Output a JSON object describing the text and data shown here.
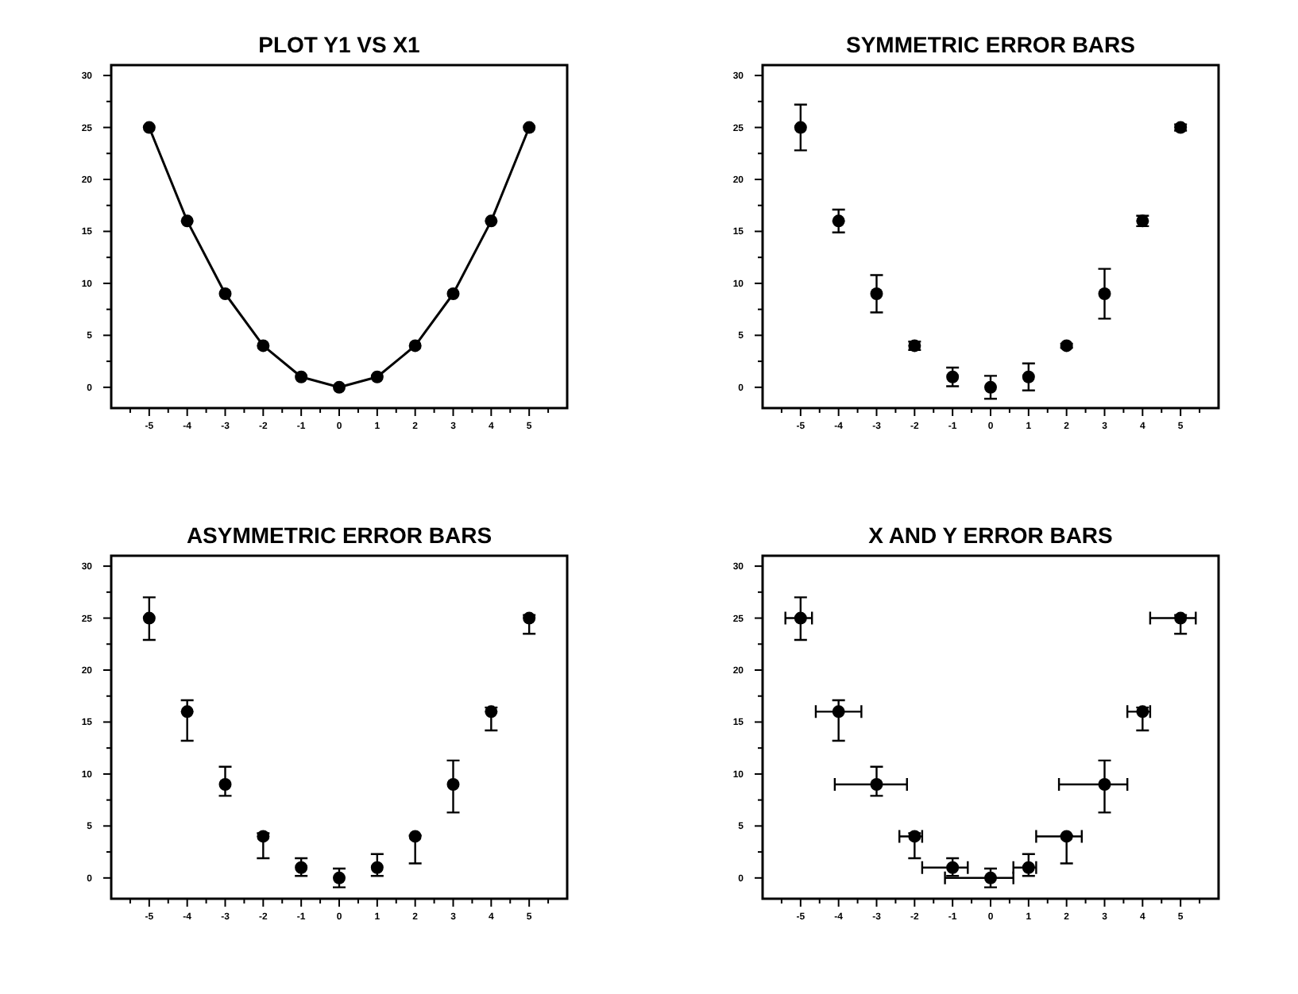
{
  "chart_data": [
    {
      "type": "line",
      "title": "PLOT Y1 VS X1",
      "x": [
        -5,
        -4,
        -3,
        -2,
        -1,
        0,
        1,
        2,
        3,
        4,
        5
      ],
      "series": [
        {
          "color": "#000000",
          "values": [
            25,
            16,
            9,
            4,
            1,
            0,
            1,
            4,
            9,
            16,
            25
          ]
        }
      ],
      "marker": "circle",
      "line_style": "solid",
      "xlim": [
        -6,
        6
      ],
      "ylim": [
        -2,
        31
      ],
      "xticks": [
        -5,
        -4,
        -3,
        -2,
        -1,
        0,
        1,
        2,
        3,
        4,
        5,
        {
          "value": -5.5,
          "label": null
        },
        {
          "value": -4.5,
          "label": null
        },
        {
          "value": -3.5,
          "label": null
        },
        {
          "value": -2.5,
          "label": null
        },
        {
          "value": -1.5,
          "label": null
        },
        {
          "value": -0.5,
          "label": null
        },
        {
          "value": 0.5,
          "label": null
        },
        {
          "value": 1.5,
          "label": null
        },
        {
          "value": 2.5,
          "label": null
        },
        {
          "value": 3.5,
          "label": null
        },
        {
          "value": 4.5,
          "label": null
        },
        {
          "value": 5.5,
          "label": null
        }
      ],
      "yticks": [
        0,
        5,
        10,
        15,
        20,
        25,
        30,
        {
          "value": 2.5,
          "label": null
        },
        {
          "value": 7.5,
          "label": null
        },
        {
          "value": 12.5,
          "label": null
        },
        {
          "value": 17.5,
          "label": null
        },
        {
          "value": 22.5,
          "label": null
        },
        {
          "value": 27.5,
          "label": null
        }
      ],
      "grid": false
    },
    {
      "type": "scatter",
      "title": "SYMMETRIC ERROR BARS",
      "x": [
        -5,
        -4,
        -3,
        -2,
        -1,
        0,
        1,
        2,
        3,
        4,
        5
      ],
      "series": [
        {
          "color": "#000000",
          "values": [
            25,
            16,
            9,
            4,
            1,
            0,
            1,
            4,
            9,
            16,
            25
          ],
          "errors": [
            2.2,
            1.1,
            1.8,
            0.4,
            0.9,
            1.1,
            1.3,
            0.2,
            2.4,
            0.5,
            0.3
          ]
        }
      ],
      "marker": "circle",
      "xlim": [
        -6,
        6
      ],
      "ylim": [
        -2,
        31
      ],
      "xticks": [
        -5,
        -4,
        -3,
        -2,
        -1,
        0,
        1,
        2,
        3,
        4,
        5,
        {
          "value": -5.5,
          "label": null
        },
        {
          "value": -4.5,
          "label": null
        },
        {
          "value": -3.5,
          "label": null
        },
        {
          "value": -2.5,
          "label": null
        },
        {
          "value": -1.5,
          "label": null
        },
        {
          "value": -0.5,
          "label": null
        },
        {
          "value": 0.5,
          "label": null
        },
        {
          "value": 1.5,
          "label": null
        },
        {
          "value": 2.5,
          "label": null
        },
        {
          "value": 3.5,
          "label": null
        },
        {
          "value": 4.5,
          "label": null
        },
        {
          "value": 5.5,
          "label": null
        }
      ],
      "yticks": [
        0,
        5,
        10,
        15,
        20,
        25,
        30,
        {
          "value": 2.5,
          "label": null
        },
        {
          "value": 7.5,
          "label": null
        },
        {
          "value": 12.5,
          "label": null
        },
        {
          "value": 17.5,
          "label": null
        },
        {
          "value": 22.5,
          "label": null
        },
        {
          "value": 27.5,
          "label": null
        }
      ],
      "grid": false
    },
    {
      "type": "scatter",
      "title": "ASYMMETRIC ERROR BARS",
      "x": [
        -5,
        -4,
        -3,
        -2,
        -1,
        0,
        1,
        2,
        3,
        4,
        5
      ],
      "series": [
        {
          "color": "#000000",
          "values": [
            25,
            16,
            9,
            4,
            1,
            0,
            1,
            4,
            9,
            16,
            25
          ],
          "errors": [
            [
              22.9,
              27.0
            ],
            [
              13.2,
              17.1
            ],
            [
              7.9,
              10.7
            ],
            [
              1.9,
              4.3
            ],
            [
              0.2,
              1.9
            ],
            [
              -0.9,
              0.9
            ],
            [
              0.2,
              2.3
            ],
            [
              1.4,
              4.1
            ],
            [
              6.3,
              11.3
            ],
            [
              14.2,
              16.4
            ],
            [
              23.5,
              25.3
            ]
          ]
        }
      ],
      "marker": "circle",
      "xlim": [
        -6,
        6
      ],
      "ylim": [
        -2,
        31
      ],
      "xticks": [
        -5,
        -4,
        -3,
        -2,
        -1,
        0,
        1,
        2,
        3,
        4,
        5,
        {
          "value": -5.5,
          "label": null
        },
        {
          "value": -4.5,
          "label": null
        },
        {
          "value": -3.5,
          "label": null
        },
        {
          "value": -2.5,
          "label": null
        },
        {
          "value": -1.5,
          "label": null
        },
        {
          "value": -0.5,
          "label": null
        },
        {
          "value": 0.5,
          "label": null
        },
        {
          "value": 1.5,
          "label": null
        },
        {
          "value": 2.5,
          "label": null
        },
        {
          "value": 3.5,
          "label": null
        },
        {
          "value": 4.5,
          "label": null
        },
        {
          "value": 5.5,
          "label": null
        }
      ],
      "yticks": [
        0,
        5,
        10,
        15,
        20,
        25,
        30,
        {
          "value": 2.5,
          "label": null
        },
        {
          "value": 7.5,
          "label": null
        },
        {
          "value": 12.5,
          "label": null
        },
        {
          "value": 17.5,
          "label": null
        },
        {
          "value": 22.5,
          "label": null
        },
        {
          "value": 27.5,
          "label": null
        }
      ],
      "grid": false
    },
    {
      "type": "scatter",
      "title": "X AND Y ERROR BARS",
      "x": [
        -5,
        -4,
        -3,
        -2,
        -1,
        0,
        1,
        2,
        3,
        4,
        5
      ],
      "series": [
        {
          "color": "#000000",
          "values": [
            25,
            16,
            9,
            4,
            1,
            0,
            1,
            4,
            9,
            16,
            25
          ],
          "errors": [
            [
              22.9,
              27.0
            ],
            [
              13.2,
              17.1
            ],
            [
              7.9,
              10.7
            ],
            [
              1.9,
              4.3
            ],
            [
              0.2,
              1.9
            ],
            [
              -0.9,
              0.9
            ],
            [
              0.2,
              2.3
            ],
            [
              1.4,
              4.1
            ],
            [
              6.3,
              11.3
            ],
            [
              14.2,
              16.4
            ],
            [
              23.5,
              25.3
            ]
          ],
          "xerrors": [
            [
              -5.4,
              -4.7
            ],
            [
              -4.6,
              -3.4
            ],
            [
              -4.1,
              -2.2
            ],
            [
              -2.4,
              -1.8
            ],
            [
              -1.8,
              -0.6
            ],
            [
              -1.2,
              0.6
            ],
            [
              0.6,
              1.2
            ],
            [
              1.2,
              2.4
            ],
            [
              1.8,
              3.6
            ],
            [
              3.6,
              4.2
            ],
            [
              4.2,
              5.4
            ]
          ]
        }
      ],
      "marker": "circle",
      "xlim": [
        -6,
        6
      ],
      "ylim": [
        -2,
        31
      ],
      "xticks": [
        -5,
        -4,
        -3,
        -2,
        -1,
        0,
        1,
        2,
        3,
        4,
        5,
        {
          "value": -5.5,
          "label": null
        },
        {
          "value": -4.5,
          "label": null
        },
        {
          "value": -3.5,
          "label": null
        },
        {
          "value": -2.5,
          "label": null
        },
        {
          "value": -1.5,
          "label": null
        },
        {
          "value": -0.5,
          "label": null
        },
        {
          "value": 0.5,
          "label": null
        },
        {
          "value": 1.5,
          "label": null
        },
        {
          "value": 2.5,
          "label": null
        },
        {
          "value": 3.5,
          "label": null
        },
        {
          "value": 4.5,
          "label": null
        },
        {
          "value": 5.5,
          "label": null
        }
      ],
      "yticks": [
        0,
        5,
        10,
        15,
        20,
        25,
        30,
        {
          "value": 2.5,
          "label": null
        },
        {
          "value": 7.5,
          "label": null
        },
        {
          "value": 12.5,
          "label": null
        },
        {
          "value": 17.5,
          "label": null
        },
        {
          "value": 22.5,
          "label": null
        },
        {
          "value": 27.5,
          "label": null
        }
      ],
      "grid": false
    }
  ]
}
